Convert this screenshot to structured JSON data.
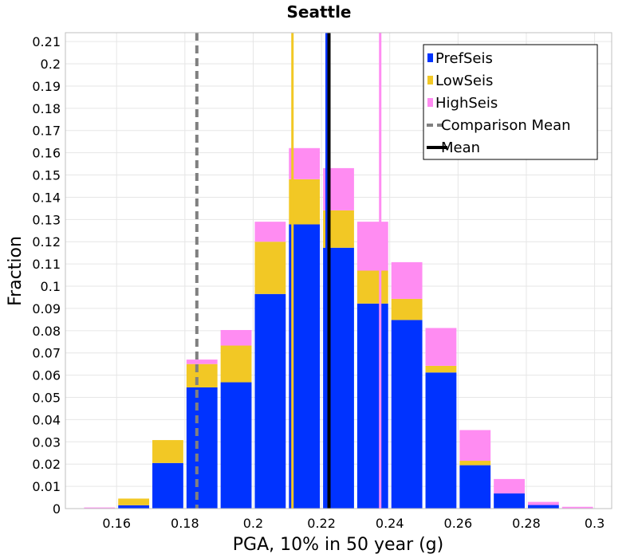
{
  "chart_data": {
    "type": "bar",
    "stacked": true,
    "title": "Seattle",
    "xlabel": "PGA, 10% in 50 year (g)",
    "ylabel": "Fraction",
    "xlim": [
      0.145,
      0.305
    ],
    "ylim": [
      0,
      0.214
    ],
    "xticks": [
      "0.16",
      "0.18",
      "0.2",
      "0.22",
      "0.24",
      "0.26",
      "0.28",
      "0.3"
    ],
    "yticks": [
      "0",
      "0.01",
      "0.02",
      "0.03",
      "0.04",
      "0.05",
      "0.06",
      "0.07",
      "0.08",
      "0.09",
      "0.1",
      "0.11",
      "0.12",
      "0.13",
      "0.14",
      "0.15",
      "0.16",
      "0.17",
      "0.18",
      "0.19",
      "0.2",
      "0.21"
    ],
    "grid": true,
    "legend_position": "top-right",
    "bin_width": 0.01,
    "x": [
      0.155,
      0.165,
      0.175,
      0.185,
      0.195,
      0.205,
      0.215,
      0.225,
      0.235,
      0.245,
      0.255,
      0.265,
      0.275,
      0.285,
      0.295
    ],
    "series": [
      {
        "name": "PrefSeis",
        "color": "#0033ff",
        "values": [
          0.0,
          0.0015,
          0.0205,
          0.0545,
          0.0568,
          0.0965,
          0.1278,
          0.1173,
          0.0922,
          0.0848,
          0.0612,
          0.0195,
          0.0068,
          0.0016,
          0.0
        ]
      },
      {
        "name": "LowSeis",
        "color": "#f2c825",
        "values": [
          0.0,
          0.003,
          0.0103,
          0.0105,
          0.0165,
          0.0235,
          0.0203,
          0.0168,
          0.0148,
          0.0095,
          0.003,
          0.002,
          0.0,
          0.0,
          0.0
        ]
      },
      {
        "name": "HighSeis",
        "color": "#ff8cf2",
        "values": [
          0.0005,
          0.0,
          0.0,
          0.002,
          0.007,
          0.009,
          0.014,
          0.019,
          0.022,
          0.0165,
          0.017,
          0.0138,
          0.0065,
          0.0014,
          0.0008
        ]
      }
    ],
    "lines": [
      {
        "name": "Comparison Mean",
        "x": 0.1835,
        "color": "#808080",
        "style": "dashed"
      },
      {
        "name": "Mean",
        "x": 0.2222,
        "color": "#000000",
        "style": "solid"
      },
      {
        "series": "PrefSeis",
        "x": 0.2215,
        "color": "#0033ff",
        "style": "solid"
      },
      {
        "series": "LowSeis",
        "x": 0.2115,
        "color": "#f2c825",
        "style": "solid"
      },
      {
        "series": "HighSeis",
        "x": 0.2372,
        "color": "#ff8cf2",
        "style": "solid"
      }
    ],
    "legend": [
      "PrefSeis",
      "LowSeis",
      "HighSeis",
      "Comparison Mean",
      "Mean"
    ]
  }
}
